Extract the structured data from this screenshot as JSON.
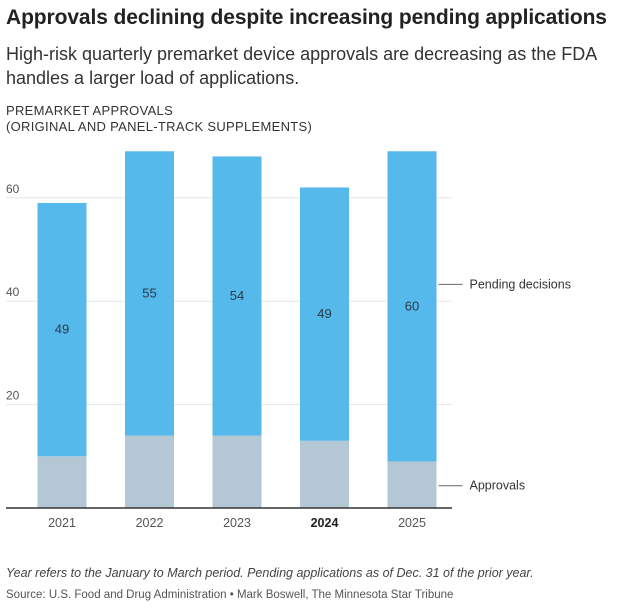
{
  "title": "Approvals declining despite increasing pending applications",
  "subtitle": "High-risk quarterly premarket device approvals are decreasing as the FDA handles a larger load of applications.",
  "axis_title_line1": "PREMARKET APPROVALS",
  "axis_title_line2": "(ORIGINAL AND PANEL-TRACK SUPPLEMENTS)",
  "footnote": "Year refers to the January to March period. Pending applications as of Dec. 31 of the prior year.",
  "source": "Source: U.S. Food and Drug Administration • Mark Boswell, The Minnesota Star Tribune",
  "chart_data": {
    "type": "bar",
    "stacked": true,
    "categories": [
      "2021",
      "2022",
      "2023",
      "2024",
      "2025"
    ],
    "highlight_category": "2024",
    "series": [
      {
        "name": "Approvals",
        "values": [
          10,
          14,
          14,
          13,
          9
        ],
        "color": "#b3c7d4"
      },
      {
        "name": "Pending decisions",
        "values": [
          49,
          55,
          54,
          49,
          60
        ],
        "color": "#55b9ec"
      }
    ],
    "ylim": [
      0,
      70
    ],
    "yticks": [
      20,
      40,
      60
    ],
    "legend_labels": [
      "Pending decisions",
      "Approvals"
    ]
  }
}
